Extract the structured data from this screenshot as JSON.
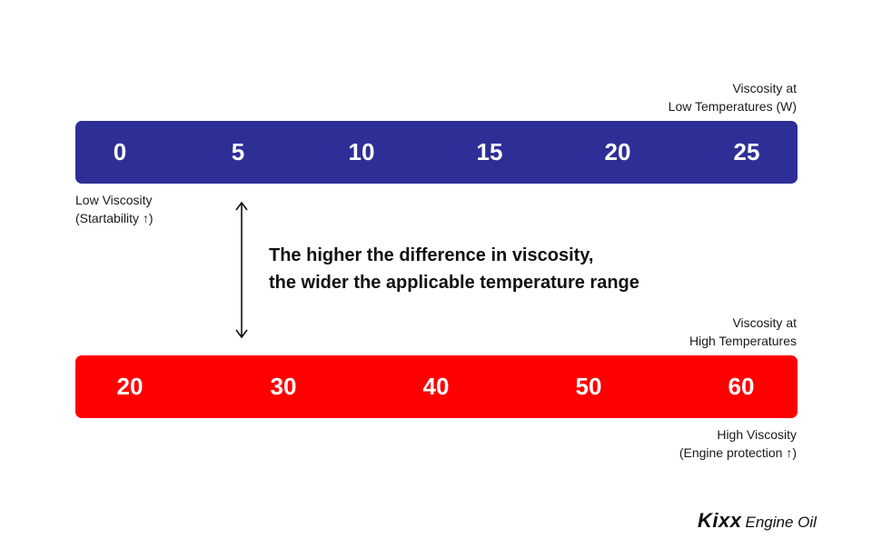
{
  "low_temp_scale": {
    "caption_line1": "Viscosity at",
    "caption_line2": "Low Temperatures (W)",
    "color": "#2e2f96",
    "values": [
      "0",
      "5",
      "10",
      "15",
      "20",
      "25"
    ],
    "note_line1": "Low Viscosity",
    "note_line2": "(Startability ↑)"
  },
  "high_temp_scale": {
    "caption_line1": "Viscosity at",
    "caption_line2": "High Temperatures",
    "color": "#ff0000",
    "values": [
      "20",
      "30",
      "40",
      "50",
      "60"
    ],
    "note_line1": "High Viscosity",
    "note_line2": "(Engine protection ↑)"
  },
  "statement": {
    "line1": "The higher the difference in viscosity,",
    "line2": "the wider the applicable temperature range"
  },
  "arrow": {
    "icon": "double-headed-vertical-arrow-icon"
  },
  "logo": {
    "brand": "Kixx",
    "product": "Engine Oil"
  }
}
